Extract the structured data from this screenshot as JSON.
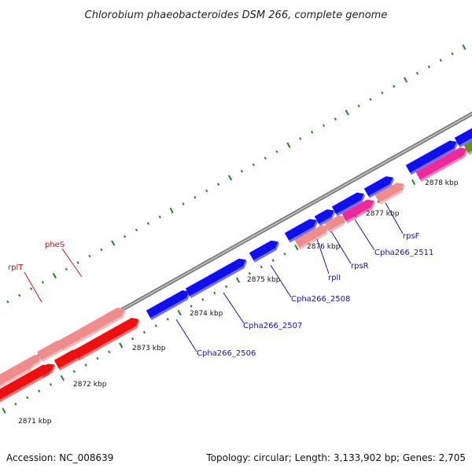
{
  "title": "Chlorobium phaeobacteroides DSM 266, complete genome",
  "footer": {
    "accession": "Accession: NC_008639",
    "topology": "Topology: circular; Length: 3,133,902 bp; Genes: 2,705"
  },
  "ticks": [
    "2871 kbp",
    "2872 kbp",
    "2873 kbp",
    "2874 kbp",
    "2875 kbp",
    "2876 kbp",
    "2877 kbp",
    "2878 kbp"
  ],
  "gene_labels": [
    "pheS",
    "rplT",
    "Cpha266_2506",
    "Cpha266_2507",
    "Cpha266_2508",
    "rplI",
    "rpsR",
    "Cpha266_2511",
    "rpsF"
  ],
  "colors": {
    "forward_gene": "#1010ee",
    "rrna_light": "#f08c8c",
    "rrna_red": "#ee1010",
    "magenta": "#ee2a9a",
    "olive": "#6a8a1a",
    "tick_green": "#1d8a1d",
    "label_blue": "#1010cc",
    "label_red": "#cc1010",
    "backbone": "#8a8a8a"
  }
}
